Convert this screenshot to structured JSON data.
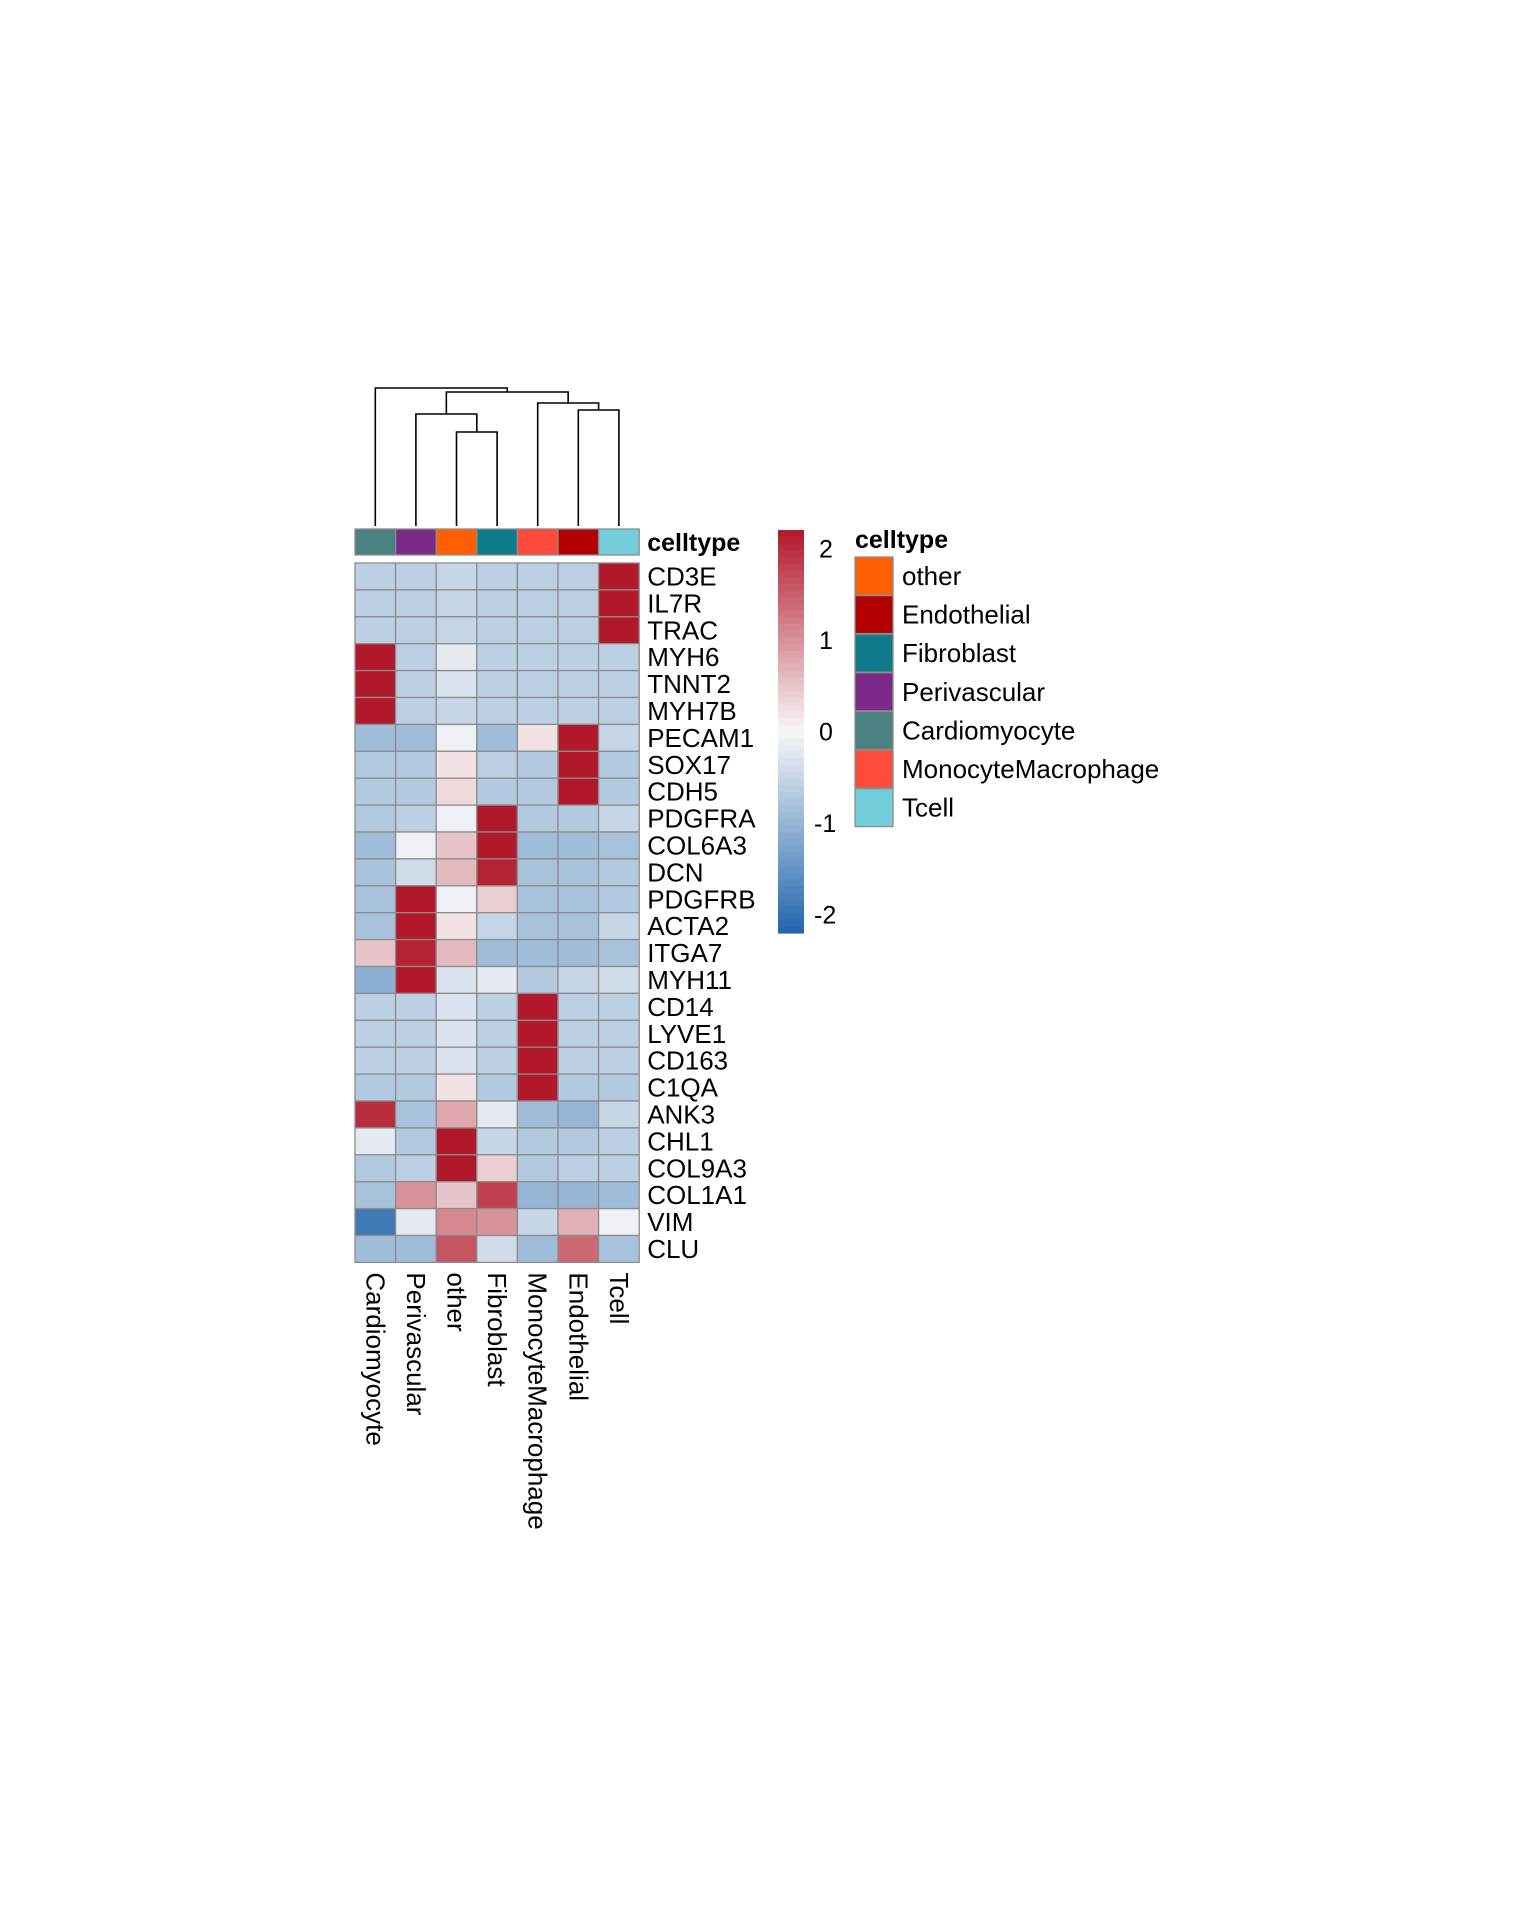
{
  "chart_data": {
    "type": "heatmap",
    "columns": [
      "Cardiomyocyte",
      "Perivascular",
      "other",
      "Fibroblast",
      "MonocyteMacrophage",
      "Endothelial",
      "Tcell"
    ],
    "rows": [
      "CD3E",
      "IL7R",
      "TRAC",
      "MYH6",
      "TNNT2",
      "MYH7B",
      "PECAM1",
      "SOX17",
      "CDH5",
      "PDGFRA",
      "COL6A3",
      "DCN",
      "PDGFRB",
      "ACTA2",
      "ITGA7",
      "MYH11",
      "CD14",
      "LYVE1",
      "CD163",
      "C1QA",
      "ANK3",
      "CHL1",
      "COL9A3",
      "COL1A1",
      "VIM",
      "CLU"
    ],
    "values": [
      [
        -0.6,
        -0.6,
        -0.5,
        -0.6,
        -0.6,
        -0.6,
        2.2
      ],
      [
        -0.6,
        -0.6,
        -0.5,
        -0.6,
        -0.6,
        -0.6,
        2.2
      ],
      [
        -0.6,
        -0.6,
        -0.5,
        -0.6,
        -0.6,
        -0.6,
        2.2
      ],
      [
        2.2,
        -0.6,
        -0.2,
        -0.6,
        -0.6,
        -0.6,
        -0.6
      ],
      [
        2.2,
        -0.6,
        -0.3,
        -0.6,
        -0.6,
        -0.6,
        -0.6
      ],
      [
        2.2,
        -0.6,
        -0.5,
        -0.6,
        -0.6,
        -0.6,
        -0.6
      ],
      [
        -0.9,
        -0.9,
        -0.1,
        -0.9,
        0.2,
        2.2,
        -0.5
      ],
      [
        -0.7,
        -0.7,
        0.2,
        -0.6,
        -0.7,
        2.2,
        -0.7
      ],
      [
        -0.7,
        -0.7,
        0.3,
        -0.7,
        -0.7,
        2.2,
        -0.7
      ],
      [
        -0.7,
        -0.6,
        -0.1,
        2.2,
        -0.7,
        -0.7,
        -0.5
      ],
      [
        -0.9,
        -0.1,
        0.5,
        2.2,
        -0.9,
        -0.9,
        -0.8
      ],
      [
        -0.8,
        -0.4,
        0.6,
        2.1,
        -0.8,
        -0.8,
        -0.7
      ],
      [
        -0.8,
        2.2,
        -0.1,
        0.4,
        -0.8,
        -0.8,
        -0.7
      ],
      [
        -0.8,
        2.2,
        0.2,
        -0.5,
        -0.8,
        -0.8,
        -0.5
      ],
      [
        0.5,
        2.1,
        0.6,
        -0.9,
        -0.9,
        -0.9,
        -0.8
      ],
      [
        -1.1,
        2.2,
        -0.3,
        -0.2,
        -0.7,
        -0.5,
        -0.4
      ],
      [
        -0.6,
        -0.6,
        -0.3,
        -0.6,
        2.2,
        -0.6,
        -0.6
      ],
      [
        -0.6,
        -0.6,
        -0.3,
        -0.6,
        2.2,
        -0.6,
        -0.6
      ],
      [
        -0.6,
        -0.6,
        -0.3,
        -0.6,
        2.2,
        -0.6,
        -0.6
      ],
      [
        -0.7,
        -0.7,
        0.2,
        -0.7,
        2.2,
        -0.7,
        -0.7
      ],
      [
        2.0,
        -0.8,
        0.8,
        -0.2,
        -0.9,
        -1.0,
        -0.5
      ],
      [
        -0.2,
        -0.7,
        2.2,
        -0.5,
        -0.7,
        -0.7,
        -0.6
      ],
      [
        -0.7,
        -0.6,
        2.2,
        0.4,
        -0.7,
        -0.6,
        -0.6
      ],
      [
        -0.8,
        1.0,
        0.5,
        1.8,
        -1.0,
        -1.0,
        -0.9
      ],
      [
        -1.9,
        -0.2,
        1.1,
        1.0,
        -0.5,
        0.7,
        -0.1
      ],
      [
        -0.9,
        -0.9,
        1.6,
        -0.4,
        -0.9,
        1.4,
        -0.8
      ]
    ],
    "color_scale": {
      "min": -2.2,
      "max": 2.2,
      "low": "#2166AC",
      "mid": "#F7F7F7",
      "high": "#B2182B",
      "ticks": [
        2,
        1,
        0,
        -1,
        -2
      ]
    },
    "annotation": {
      "title": "celltype",
      "legend": [
        {
          "label": "other",
          "color": "#FF5F00"
        },
        {
          "label": "Endothelial",
          "color": "#B30000"
        },
        {
          "label": "Fibroblast",
          "color": "#0F7A8A"
        },
        {
          "label": "Perivascular",
          "color": "#7B2A8A"
        },
        {
          "label": "Cardiomyocyte",
          "color": "#4A8181"
        },
        {
          "label": "MonocyteMacrophage",
          "color": "#FF4B3A"
        },
        {
          "label": "Tcell",
          "color": "#73CDDA"
        }
      ]
    },
    "column_dendrogram": true,
    "legend_position": "right"
  }
}
